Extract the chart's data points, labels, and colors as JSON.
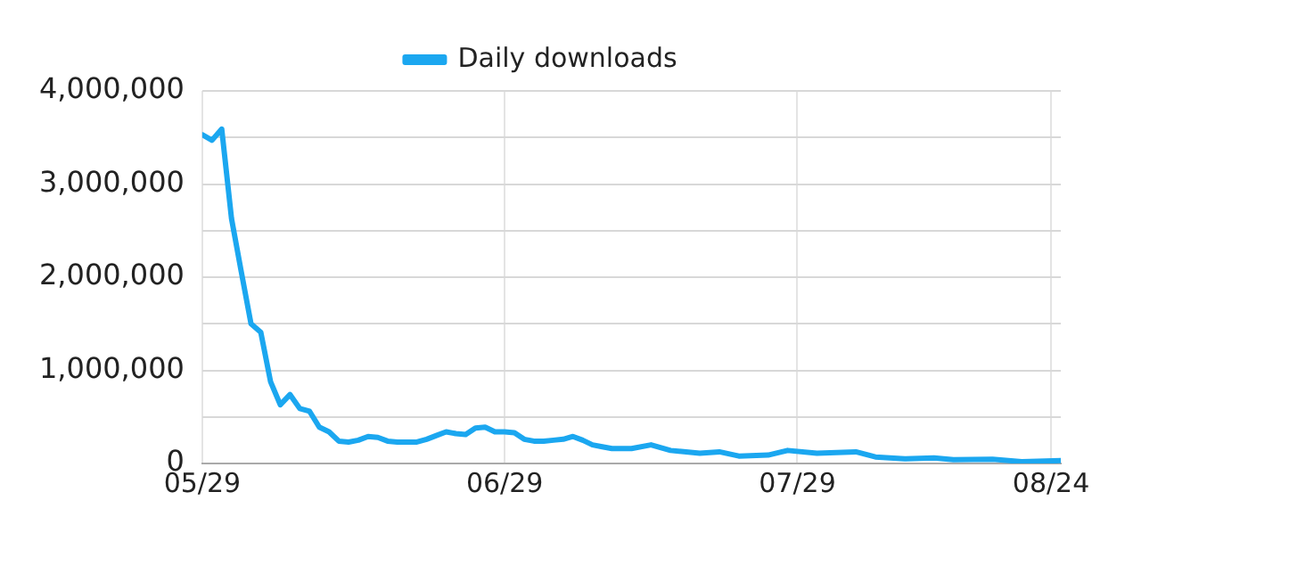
{
  "chart_data": {
    "type": "line",
    "x": [
      "--05-29",
      "--05-30",
      "--05-31",
      "--06-01",
      "--06-02",
      "--06-03",
      "--06-04",
      "--06-05",
      "--06-06",
      "--06-07",
      "--06-08",
      "--06-09",
      "--06-10",
      "--06-11",
      "--06-12",
      "--06-13",
      "--06-14",
      "--06-15",
      "--06-16",
      "--06-17",
      "--06-18",
      "--06-19",
      "--06-20",
      "--06-21",
      "--06-22",
      "--06-23",
      "--06-24",
      "--06-25",
      "--06-26",
      "--06-27",
      "--06-28",
      "--06-29",
      "--06-30",
      "--07-01",
      "--07-02",
      "--07-03",
      "--07-04",
      "--07-05",
      "--07-06",
      "--07-07",
      "--07-08",
      "--07-09",
      "--07-10",
      "--07-12",
      "--07-14",
      "--07-16",
      "--07-19",
      "--07-21",
      "--07-23",
      "--07-26",
      "--07-28",
      "--07-31",
      "--08-04",
      "--08-06",
      "--08-09",
      "--08-12",
      "--08-14",
      "--08-18",
      "--08-21",
      "--08-25"
    ],
    "series": [
      {
        "name": "Daily downloads",
        "color": "#1ba7f0",
        "values": [
          3530000,
          3470000,
          3590000,
          2630000,
          2060000,
          1500000,
          1410000,
          880000,
          630000,
          740000,
          590000,
          560000,
          390000,
          340000,
          240000,
          230000,
          250000,
          290000,
          280000,
          240000,
          230000,
          230000,
          230000,
          260000,
          300000,
          340000,
          320000,
          310000,
          380000,
          390000,
          340000,
          340000,
          330000,
          260000,
          240000,
          240000,
          250000,
          260000,
          290000,
          250000,
          200000,
          180000,
          160000,
          160000,
          200000,
          140000,
          110000,
          125000,
          80000,
          90000,
          140000,
          110000,
          125000,
          70000,
          50000,
          60000,
          40000,
          45000,
          20000,
          30000
        ]
      }
    ],
    "xlim": [
      "--05-29",
      "--08-25"
    ],
    "xticks": [
      {
        "value": "--05-29",
        "label": "05/29"
      },
      {
        "value": "--06-29",
        "label": "06/29"
      },
      {
        "value": "--07-29",
        "label": "07/29"
      },
      {
        "value": "--08-24",
        "label": "08/24"
      }
    ],
    "ylim": [
      0,
      4000000
    ],
    "yticks": [
      {
        "value": 0,
        "label": "0"
      },
      {
        "value": 500000,
        "label": null
      },
      {
        "value": 1000000,
        "label": "1,000,000"
      },
      {
        "value": 1500000,
        "label": null
      },
      {
        "value": 2000000,
        "label": "2,000,000"
      },
      {
        "value": 2500000,
        "label": null
      },
      {
        "value": 3000000,
        "label": "3,000,000"
      },
      {
        "value": 3500000,
        "label": null
      },
      {
        "value": 4000000,
        "label": "4,000,000"
      }
    ],
    "grid": true,
    "legend": "top",
    "marker": "none",
    "line_style": "solid"
  }
}
